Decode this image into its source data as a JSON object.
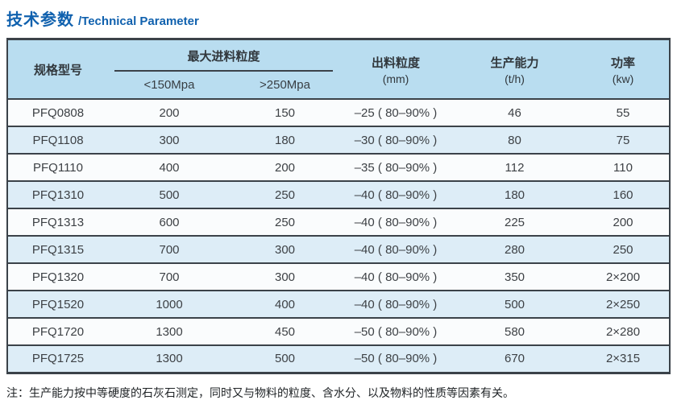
{
  "title": {
    "zh": "技术参数",
    "en": "/Technical Parameter"
  },
  "table": {
    "headers": {
      "model": "规格型号",
      "max_feed_group": "最大进料粒度",
      "sub_150": "<150Mpa",
      "sub_250": ">250Mpa",
      "output_line1": "出料粒度",
      "output_line2": "(mm)",
      "capacity_line1": "生产能力",
      "capacity_line2": "(t/h)",
      "power_line1": "功率",
      "power_line2": "(kw)"
    },
    "rows": [
      {
        "model": "PFQ0808",
        "feed150": "200",
        "feed250": "150",
        "output": "–25 ( 80–90% )",
        "capacity": "46",
        "power": "55"
      },
      {
        "model": "PFQ1108",
        "feed150": "300",
        "feed250": "180",
        "output": "–30 ( 80–90% )",
        "capacity": "80",
        "power": "75"
      },
      {
        "model": "PFQ1110",
        "feed150": "400",
        "feed250": "200",
        "output": "–35 ( 80–90% )",
        "capacity": "112",
        "power": "110"
      },
      {
        "model": "PFQ1310",
        "feed150": "500",
        "feed250": "250",
        "output": "–40 ( 80–90% )",
        "capacity": "180",
        "power": "160"
      },
      {
        "model": "PFQ1313",
        "feed150": "600",
        "feed250": "250",
        "output": "–40 ( 80–90% )",
        "capacity": "225",
        "power": "200"
      },
      {
        "model": "PFQ1315",
        "feed150": "700",
        "feed250": "300",
        "output": "–40 ( 80–90% )",
        "capacity": "280",
        "power": "250"
      },
      {
        "model": "PFQ1320",
        "feed150": "700",
        "feed250": "300",
        "output": "–40 ( 80–90% )",
        "capacity": "350",
        "power": "2×200"
      },
      {
        "model": "PFQ1520",
        "feed150": "1000",
        "feed250": "400",
        "output": "–40 ( 80–90% )",
        "capacity": "500",
        "power": "2×250"
      },
      {
        "model": "PFQ1720",
        "feed150": "1300",
        "feed250": "450",
        "output": "–50 ( 80–90% )",
        "capacity": "580",
        "power": "2×280"
      },
      {
        "model": "PFQ1725",
        "feed150": "1300",
        "feed250": "500",
        "output": "–50 ( 80–90% )",
        "capacity": "670",
        "power": "2×315"
      }
    ]
  },
  "note": "注：生产能力按中等硬度的石灰石测定，同时又与物料的粒度、含水分、以及物料的性质等因素有关。",
  "colors": {
    "title-blue": "#1061ae",
    "header-bg": "#b9ddf0",
    "row-alt-bg": "#ddedf7",
    "row-bg": "#fafcfd",
    "line": "#3b4249",
    "text": "#3d4145"
  }
}
